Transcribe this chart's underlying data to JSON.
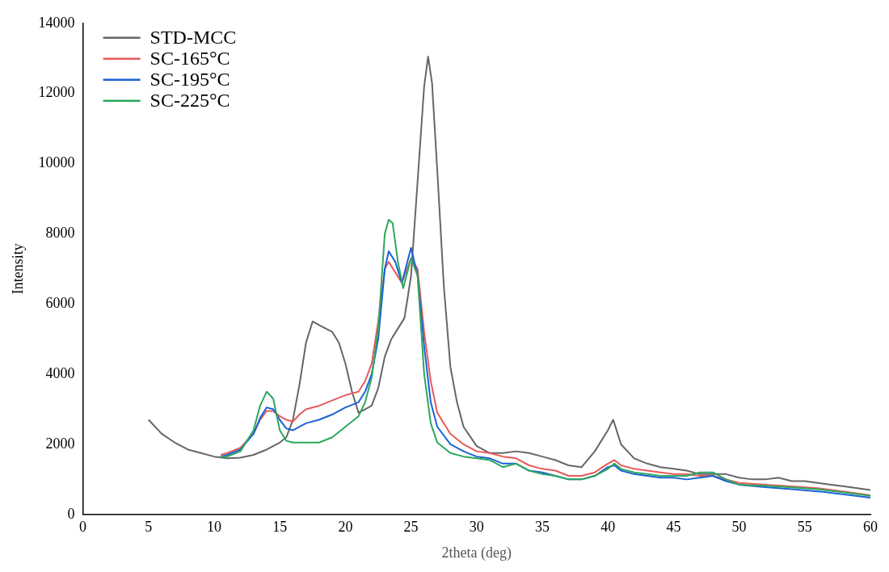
{
  "chart_data": {
    "type": "line",
    "xlabel": "2theta (deg)",
    "ylabel": "Intensity",
    "xlim": [
      0,
      60
    ],
    "xticks": [
      0,
      5,
      10,
      15,
      20,
      25,
      30,
      35,
      40,
      45,
      50,
      55,
      60
    ],
    "ylim": [
      0,
      14000
    ],
    "yticks": [
      0,
      2000,
      4000,
      6000,
      8000,
      10000,
      12000,
      14000
    ],
    "grid": false,
    "legend": "top left",
    "marker": "none",
    "line_style": "solid",
    "series": [
      {
        "name": "STD-MCC",
        "color": "#666666",
        "x": [
          5,
          6,
          7,
          8,
          9,
          10,
          11,
          12,
          13,
          14,
          15,
          15.5,
          16,
          16.5,
          17,
          17.5,
          18,
          18.5,
          19,
          19.5,
          20,
          20.5,
          21,
          21.5,
          22,
          22.5,
          23,
          23.5,
          24,
          24.5,
          25,
          25.5,
          26,
          26.3,
          26.6,
          27,
          27.5,
          28,
          28.5,
          29,
          30,
          31,
          32,
          33,
          34,
          35,
          36,
          37,
          38,
          39,
          40,
          40.4,
          41,
          42,
          43,
          44,
          45,
          46,
          47,
          48,
          49,
          50,
          51,
          52,
          53,
          54,
          55,
          56,
          57,
          58,
          59,
          60
        ],
        "values": [
          2700,
          2300,
          2050,
          1850,
          1750,
          1650,
          1600,
          1620,
          1700,
          1850,
          2050,
          2200,
          2700,
          3700,
          4900,
          5500,
          5400,
          5300,
          5200,
          4900,
          4300,
          3500,
          2900,
          3000,
          3100,
          3600,
          4500,
          5000,
          5300,
          5600,
          6800,
          9500,
          12200,
          13050,
          12300,
          9800,
          6500,
          4200,
          3200,
          2500,
          1950,
          1750,
          1750,
          1800,
          1750,
          1650,
          1550,
          1400,
          1350,
          1800,
          2400,
          2700,
          2000,
          1600,
          1450,
          1350,
          1300,
          1250,
          1150,
          1150,
          1150,
          1050,
          1000,
          1000,
          1050,
          950,
          950,
          900,
          850,
          800,
          750,
          700
        ]
      },
      {
        "name": "SC-165°C",
        "color": "#e85a5a",
        "x": [
          10.5,
          11,
          12,
          13,
          13.5,
          14,
          14.5,
          15,
          15.5,
          16,
          16.5,
          17,
          18,
          19,
          20,
          21,
          21.5,
          22,
          22.5,
          23,
          23.3,
          23.8,
          24.3,
          25,
          25.5,
          26,
          26.5,
          27,
          28,
          29,
          30,
          31,
          32,
          33,
          34,
          35,
          36,
          37,
          38,
          39,
          40,
          40.5,
          41,
          42,
          43,
          44,
          45,
          46,
          47,
          48,
          49,
          50,
          52,
          54,
          56,
          58,
          60
        ],
        "values": [
          1700,
          1750,
          1900,
          2300,
          2700,
          2950,
          2950,
          2800,
          2700,
          2650,
          2850,
          3000,
          3100,
          3250,
          3400,
          3500,
          3800,
          4300,
          5500,
          7000,
          7200,
          6900,
          6600,
          7300,
          7000,
          5200,
          3800,
          2900,
          2300,
          2000,
          1800,
          1750,
          1650,
          1600,
          1400,
          1300,
          1250,
          1100,
          1100,
          1200,
          1450,
          1550,
          1400,
          1300,
          1250,
          1200,
          1150,
          1150,
          1100,
          1100,
          1000,
          900,
          850,
          800,
          750,
          650,
          550
        ]
      },
      {
        "name": "SC-195°C",
        "color": "#1a62d6",
        "x": [
          10.5,
          11,
          12,
          13,
          13.5,
          14,
          14.5,
          15,
          15.5,
          16,
          16.5,
          17,
          18,
          19,
          20,
          21,
          21.5,
          22,
          22.5,
          23,
          23.3,
          23.8,
          24.3,
          25,
          25.5,
          26,
          26.5,
          27,
          28,
          29,
          30,
          31,
          32,
          33,
          34,
          35,
          36,
          37,
          38,
          39,
          40,
          40.5,
          41,
          42,
          43,
          44,
          45,
          46,
          47,
          48,
          49,
          50,
          52,
          54,
          56,
          58,
          60
        ],
        "values": [
          1650,
          1700,
          1850,
          2300,
          2750,
          3050,
          3000,
          2700,
          2450,
          2400,
          2500,
          2600,
          2700,
          2850,
          3050,
          3200,
          3500,
          4000,
          5000,
          7000,
          7500,
          7200,
          6600,
          7600,
          6800,
          4800,
          3200,
          2500,
          2000,
          1800,
          1650,
          1600,
          1450,
          1450,
          1250,
          1200,
          1100,
          1000,
          1000,
          1100,
          1350,
          1400,
          1250,
          1150,
          1100,
          1050,
          1050,
          1000,
          1050,
          1100,
          950,
          850,
          780,
          720,
          660,
          570,
          480
        ]
      },
      {
        "name": "SC-225°C",
        "color": "#2ca85e",
        "x": [
          10.5,
          11,
          12,
          13,
          13.5,
          14,
          14.5,
          15,
          15.5,
          16,
          17,
          18,
          19,
          20,
          21,
          21.5,
          22,
          22.5,
          23,
          23.3,
          23.6,
          24,
          24.4,
          25,
          25.5,
          26,
          26.5,
          27,
          28,
          29,
          30,
          31,
          32,
          33,
          34,
          35,
          36,
          37,
          38,
          39,
          40,
          40.5,
          41,
          42,
          43,
          44,
          45,
          46,
          47,
          48,
          49,
          50,
          52,
          54,
          56,
          58,
          60
        ],
        "values": [
          1650,
          1650,
          1800,
          2400,
          3100,
          3500,
          3300,
          2400,
          2100,
          2050,
          2050,
          2050,
          2200,
          2500,
          2800,
          3200,
          3900,
          5300,
          8000,
          8400,
          8300,
          7200,
          6450,
          7300,
          6800,
          4000,
          2600,
          2050,
          1750,
          1650,
          1600,
          1550,
          1350,
          1450,
          1250,
          1150,
          1100,
          1000,
          1000,
          1100,
          1300,
          1450,
          1300,
          1200,
          1150,
          1100,
          1100,
          1100,
          1200,
          1200,
          1000,
          850,
          820,
          770,
          720,
          630,
          530
        ]
      }
    ]
  }
}
